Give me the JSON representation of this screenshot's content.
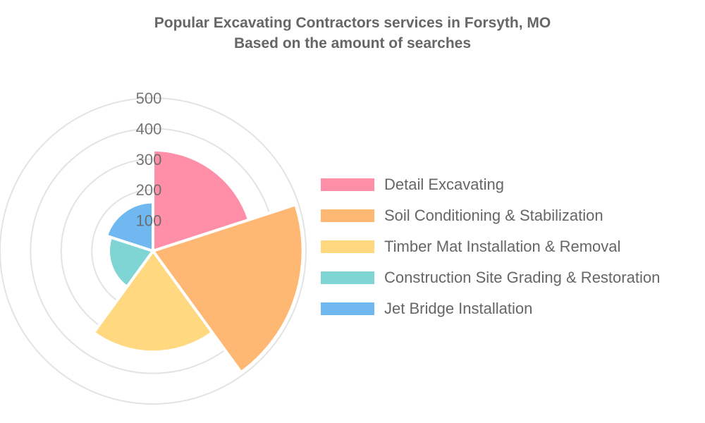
{
  "chart_data": {
    "type": "polarArea",
    "title": "Popular Excavating Contractors services in Forsyth, MO",
    "subtitle": "Based on the amount of searches",
    "categories": [
      "Detail Excavating",
      "Soil Conditioning & Stabilization",
      "Timber Mat Installation & Removal",
      "Construction Site Grading & Restoration",
      "Jet Bridge Installation"
    ],
    "values": [
      330,
      490,
      330,
      145,
      160
    ],
    "colors": [
      "#ff8fa8",
      "#ffb874",
      "#ffd880",
      "#7fd4d4",
      "#6fb8f0"
    ],
    "r_ticks": [
      "100",
      "200",
      "300",
      "400",
      "500"
    ],
    "r_range": [
      0,
      500
    ],
    "grid": true,
    "legend_position": "right"
  }
}
